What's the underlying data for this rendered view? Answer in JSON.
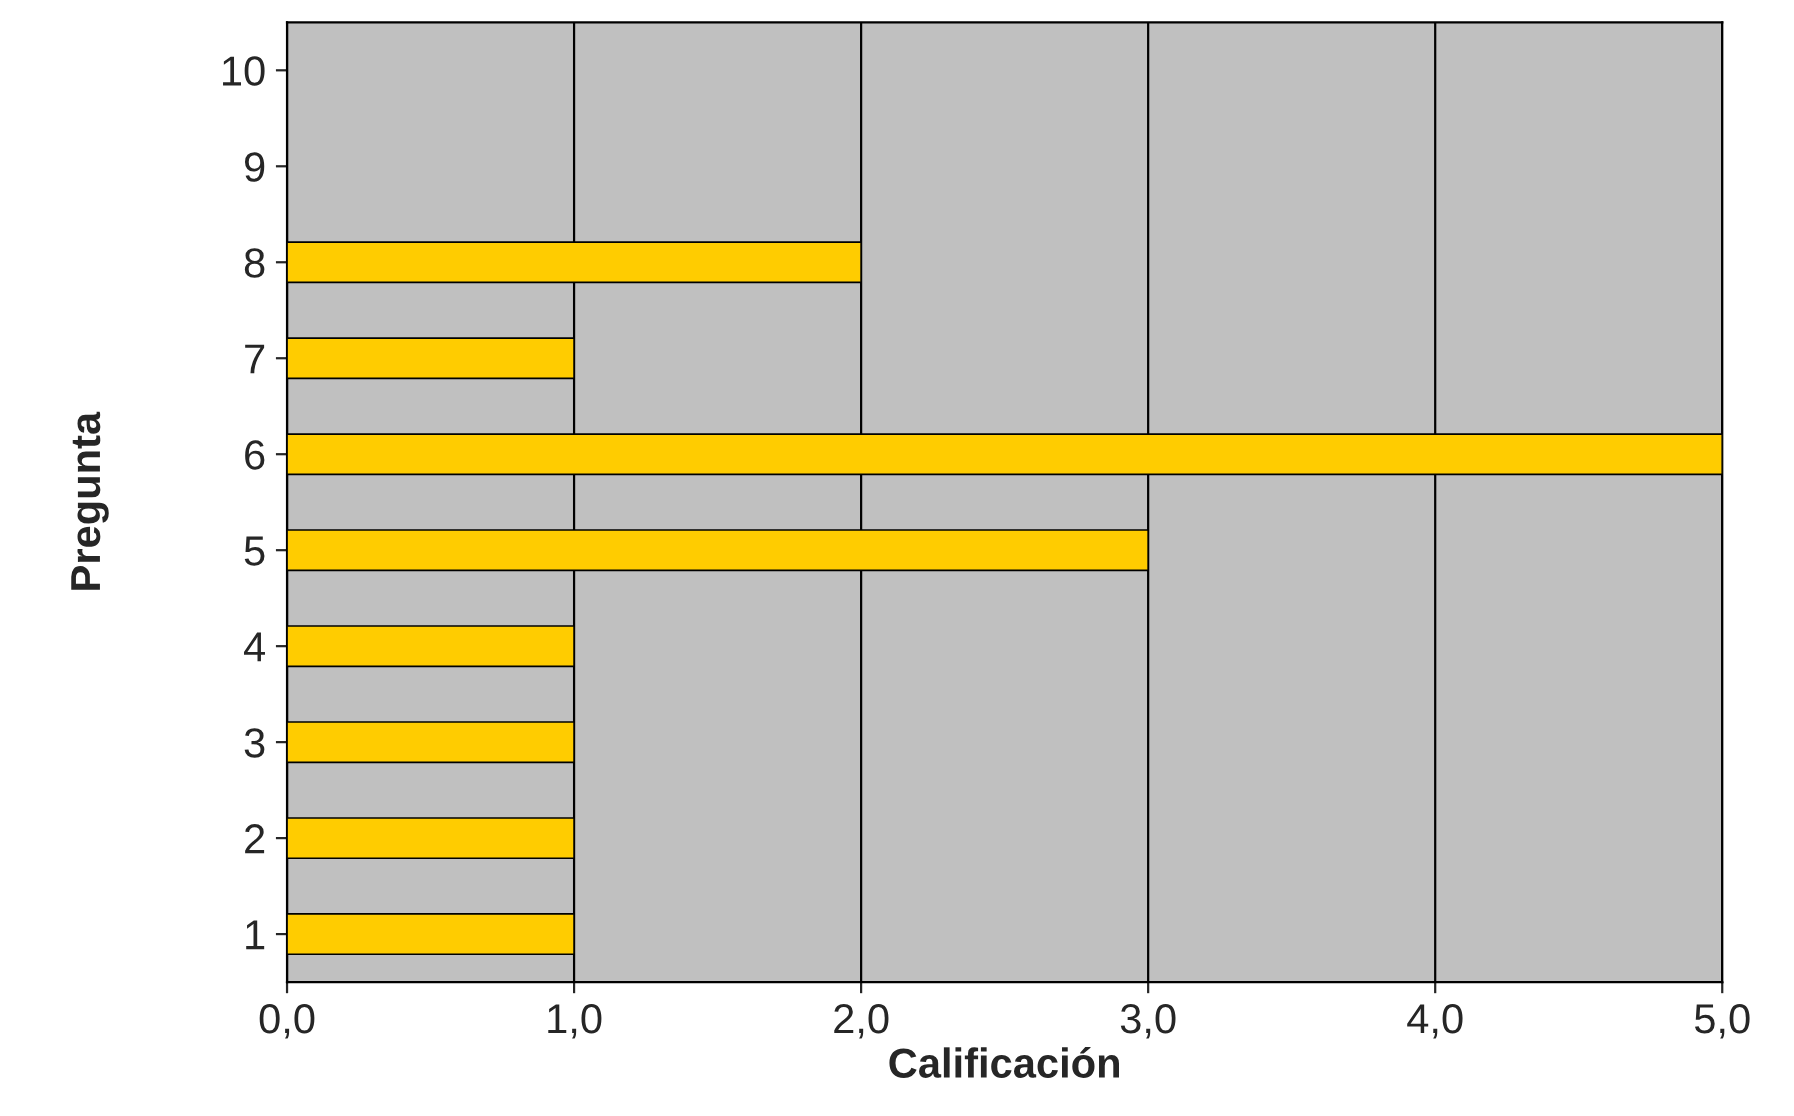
{
  "chart_data": {
    "type": "bar",
    "orientation": "horizontal",
    "xlabel": "Calificación",
    "ylabel": "Pregunta",
    "categories": [
      "10",
      "9",
      "8",
      "7",
      "6",
      "5",
      "4",
      "3",
      "2",
      "1"
    ],
    "values": [
      null,
      null,
      2,
      1,
      5,
      3,
      1,
      1,
      1,
      1
    ],
    "color": "#ffcc00",
    "xlim": [
      0,
      5
    ],
    "xticks": [
      {
        "value": 0,
        "label": "0,0"
      },
      {
        "value": 1,
        "label": "1,0"
      },
      {
        "value": 2,
        "label": "2,0"
      },
      {
        "value": 3,
        "label": "3,0"
      },
      {
        "value": 4,
        "label": "4,0"
      },
      {
        "value": 5,
        "label": "5,0"
      }
    ],
    "grid": "x",
    "legend": false
  }
}
